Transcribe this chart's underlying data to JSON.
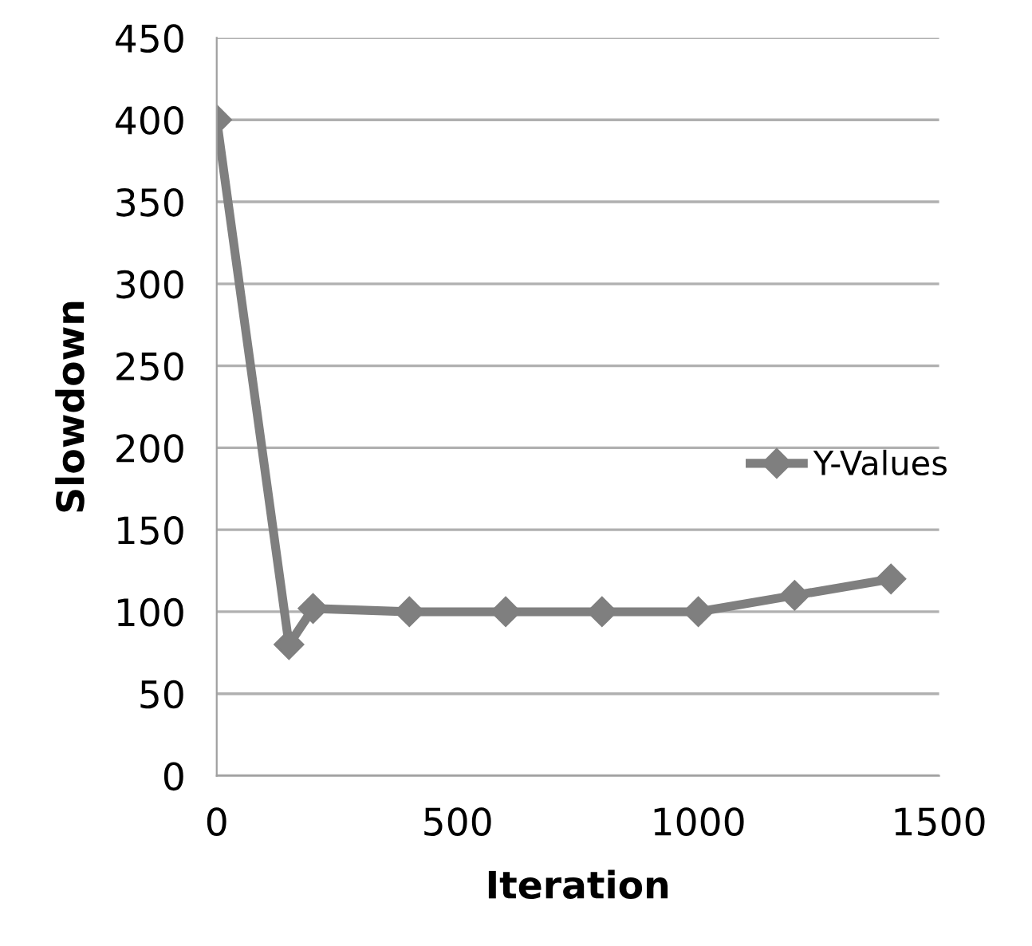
{
  "chart_data": {
    "type": "line",
    "xlabel": "Iteration",
    "ylabel": "Slowdown",
    "series": [
      {
        "name": "Y-Values",
        "color": "#7f7f7f",
        "x": [
          0,
          150,
          200,
          400,
          600,
          800,
          1000,
          1200,
          1400
        ],
        "values": [
          400,
          80,
          102,
          100,
          100,
          100,
          100,
          110,
          120
        ]
      }
    ],
    "xlim": [
      0,
      1500
    ],
    "xticks": [
      0,
      500,
      1000,
      1500
    ],
    "ylim": [
      0,
      450
    ],
    "yticks": [
      0,
      50,
      100,
      150,
      200,
      250,
      300,
      350,
      400,
      450
    ],
    "grid": "y",
    "legend": "right",
    "marker": "diamond",
    "line_style": "solid"
  }
}
